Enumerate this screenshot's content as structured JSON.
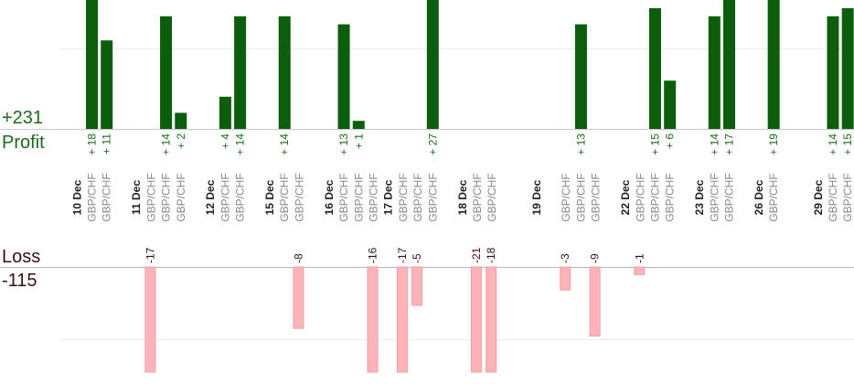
{
  "summary": {
    "profit_value": "+231",
    "profit_label": "Profit",
    "loss_label": "Loss",
    "loss_value": "-115"
  },
  "colors": {
    "profit_bar": "#0b5e0b",
    "loss_bar": "#ffb3b6",
    "profit_text": "#1a6b1a",
    "loss_text": "#3a1010"
  },
  "chart_data": {
    "type": "bar",
    "pair": "GBP/CHF",
    "dates": [
      "10 Dec",
      "11 Dec",
      "12 Dec",
      "15 Dec",
      "16 Dec",
      "17 Dec",
      "18 Dec",
      "19 Dec",
      "22 Dec",
      "23 Dec",
      "26 Dec",
      "29 Dec"
    ],
    "trades": [
      {
        "date_index": 0,
        "value": 18,
        "label": "+ 18"
      },
      {
        "date_index": 0,
        "value": 11,
        "label": "+ 11"
      },
      {
        "date_index": 1,
        "value": -17,
        "label": "-17"
      },
      {
        "date_index": 1,
        "value": 14,
        "label": "+ 14"
      },
      {
        "date_index": 1,
        "value": 2,
        "label": "+ 2"
      },
      {
        "date_index": 2,
        "value": 4,
        "label": "+ 4"
      },
      {
        "date_index": 2,
        "value": 14,
        "label": "+ 14"
      },
      {
        "date_index": 3,
        "value": 14,
        "label": "+ 14"
      },
      {
        "date_index": 3,
        "value": -8,
        "label": "-8"
      },
      {
        "date_index": 4,
        "value": 13,
        "label": "+ 13"
      },
      {
        "date_index": 4,
        "value": 1,
        "label": "+ 1"
      },
      {
        "date_index": 4,
        "value": -16,
        "label": "-16"
      },
      {
        "date_index": 5,
        "value": -17,
        "label": "-17"
      },
      {
        "date_index": 5,
        "value": -5,
        "label": "-5"
      },
      {
        "date_index": 5,
        "value": 27,
        "label": "+ 27"
      },
      {
        "date_index": 6,
        "value": -21,
        "label": "-21"
      },
      {
        "date_index": 6,
        "value": -18,
        "label": "-18"
      },
      {
        "date_index": 7,
        "value": -3,
        "label": "-3"
      },
      {
        "date_index": 7,
        "value": 13,
        "label": "+ 13"
      },
      {
        "date_index": 7,
        "value": -9,
        "label": "-9"
      },
      {
        "date_index": 8,
        "value": -1,
        "label": "-1"
      },
      {
        "date_index": 8,
        "value": 15,
        "label": "+ 15"
      },
      {
        "date_index": 8,
        "value": 6,
        "label": "+ 6"
      },
      {
        "date_index": 9,
        "value": 14,
        "label": "+ 14"
      },
      {
        "date_index": 9,
        "value": 17,
        "label": "+ 17"
      },
      {
        "date_index": 10,
        "value": 19,
        "label": "+ 19"
      },
      {
        "date_index": 11,
        "value": 14,
        "label": "+ 14"
      },
      {
        "date_index": 11,
        "value": 15,
        "label": "+ 15"
      }
    ],
    "profit_axis_max": 16,
    "loss_axis_max": 14,
    "grid": true
  }
}
